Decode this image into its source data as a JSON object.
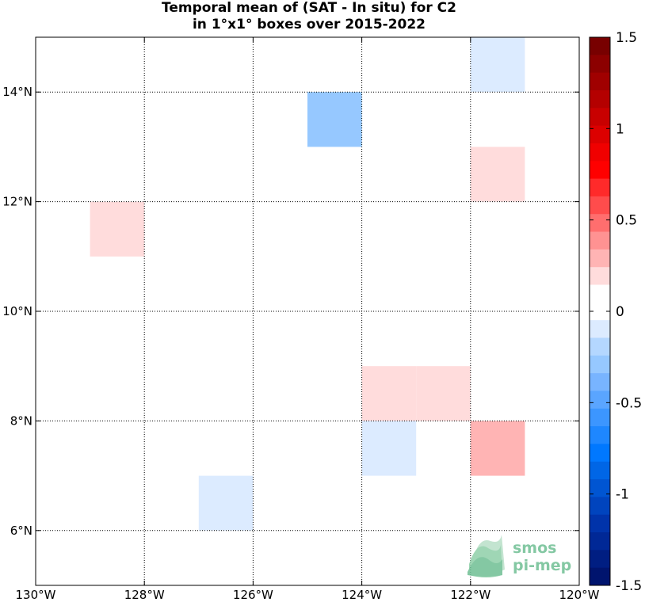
{
  "chart_data": {
    "type": "heatmap",
    "title": "Temporal mean of (SAT - In situ) for C2",
    "subtitle": "in 1°x1° boxes over 2015-2022",
    "xlim": [
      -130,
      -120
    ],
    "ylim": [
      5,
      15
    ],
    "grid": true,
    "x_ticks": [
      {
        "value": -130,
        "label": "130°W"
      },
      {
        "value": -128,
        "label": "128°W"
      },
      {
        "value": -126,
        "label": "126°W"
      },
      {
        "value": -124,
        "label": "124°W"
      },
      {
        "value": -122,
        "label": "122°W"
      },
      {
        "value": -120,
        "label": "120°W"
      }
    ],
    "y_ticks": [
      {
        "value": 6,
        "label": "6°N"
      },
      {
        "value": 8,
        "label": "8°N"
      },
      {
        "value": 10,
        "label": "10°N"
      },
      {
        "value": 12,
        "label": "12°N"
      },
      {
        "value": 14,
        "label": "14°N"
      }
    ],
    "boxes": [
      {
        "lon": -122,
        "lat": 14,
        "value": -0.1
      },
      {
        "lon": -125,
        "lat": 13,
        "value": -0.25
      },
      {
        "lon": -122,
        "lat": 12,
        "value": 0.15
      },
      {
        "lon": -129,
        "lat": 11,
        "value": 0.15
      },
      {
        "lon": -124,
        "lat": 8,
        "value": 0.15
      },
      {
        "lon": -123,
        "lat": 8,
        "value": 0.15
      },
      {
        "lon": -124,
        "lat": 7,
        "value": -0.1
      },
      {
        "lon": -122,
        "lat": 7,
        "value": 0.3
      },
      {
        "lon": -127,
        "lat": 6,
        "value": -0.1
      }
    ],
    "colorbar": {
      "min": -1.5,
      "max": 1.5,
      "ticks": [
        {
          "value": 1.5,
          "label": "1.5"
        },
        {
          "value": 1,
          "label": "1"
        },
        {
          "value": 0.5,
          "label": "0.5"
        },
        {
          "value": 0,
          "label": "0"
        },
        {
          "value": -0.5,
          "label": "-0.5"
        },
        {
          "value": -1,
          "label": "-1"
        },
        {
          "value": -1.5,
          "label": "-1.5"
        }
      ],
      "colors_top_to_bottom": [
        "#780000",
        "#8c0000",
        "#a00000",
        "#b40000",
        "#c80000",
        "#dc0000",
        "#f00000",
        "#ff0000",
        "#ff2a2a",
        "#ff4c4c",
        "#ff6e6e",
        "#ff9292",
        "#ffb4b4",
        "#ffdcdc",
        "#ffffff",
        "#ffffff",
        "#dcebff",
        "#b4d7ff",
        "#96c8ff",
        "#78b4ff",
        "#5aa5ff",
        "#3c96ff",
        "#1e87ff",
        "#0078ff",
        "#0066e6",
        "#0055d2",
        "#0044be",
        "#0033aa",
        "#002896",
        "#001e82",
        "#00146e"
      ]
    }
  },
  "logo": {
    "line1": "smos",
    "line2": "pi-mep",
    "color": "#6fbf94"
  }
}
